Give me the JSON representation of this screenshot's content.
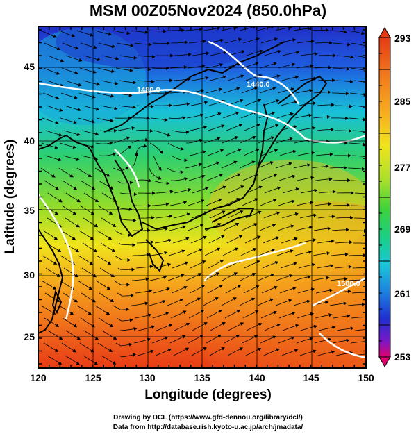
{
  "title": "MSM 00Z05Nov2024 (850.0hPa)",
  "x_axis": {
    "label": "Longitude (degrees)",
    "ticks": [
      "120",
      "125",
      "130",
      "135",
      "140",
      "145",
      "150"
    ]
  },
  "y_axis": {
    "label": "Latitude  (degrees)",
    "ticks": [
      "25",
      "30",
      "35",
      "40",
      "45"
    ]
  },
  "colorbar": {
    "ticks": [
      "293",
      "285",
      "277",
      "269",
      "261",
      "253"
    ],
    "colors": [
      "#e0006e",
      "#7a18c8",
      "#1f2fd0",
      "#1e7de0",
      "#19c8d8",
      "#18d08a",
      "#3bd23c",
      "#a6e02a",
      "#f0e41c",
      "#f7b01e",
      "#f27a1c",
      "#e63a16"
    ]
  },
  "contours": [
    {
      "label": "1480.0"
    },
    {
      "label": "1440.0"
    },
    {
      "label": "1500.0"
    }
  ],
  "credits": [
    "Drawing by DCL (https://www.gfd-dennou.org/library/dcl/)",
    "Data from http://database.rish.kyoto-u.ac.jp/arch/jmadata/"
  ],
  "map_features": [
    "temperature-field",
    "wind-streamlines",
    "coastlines",
    "geopotential-contours",
    "grid-lines"
  ]
}
